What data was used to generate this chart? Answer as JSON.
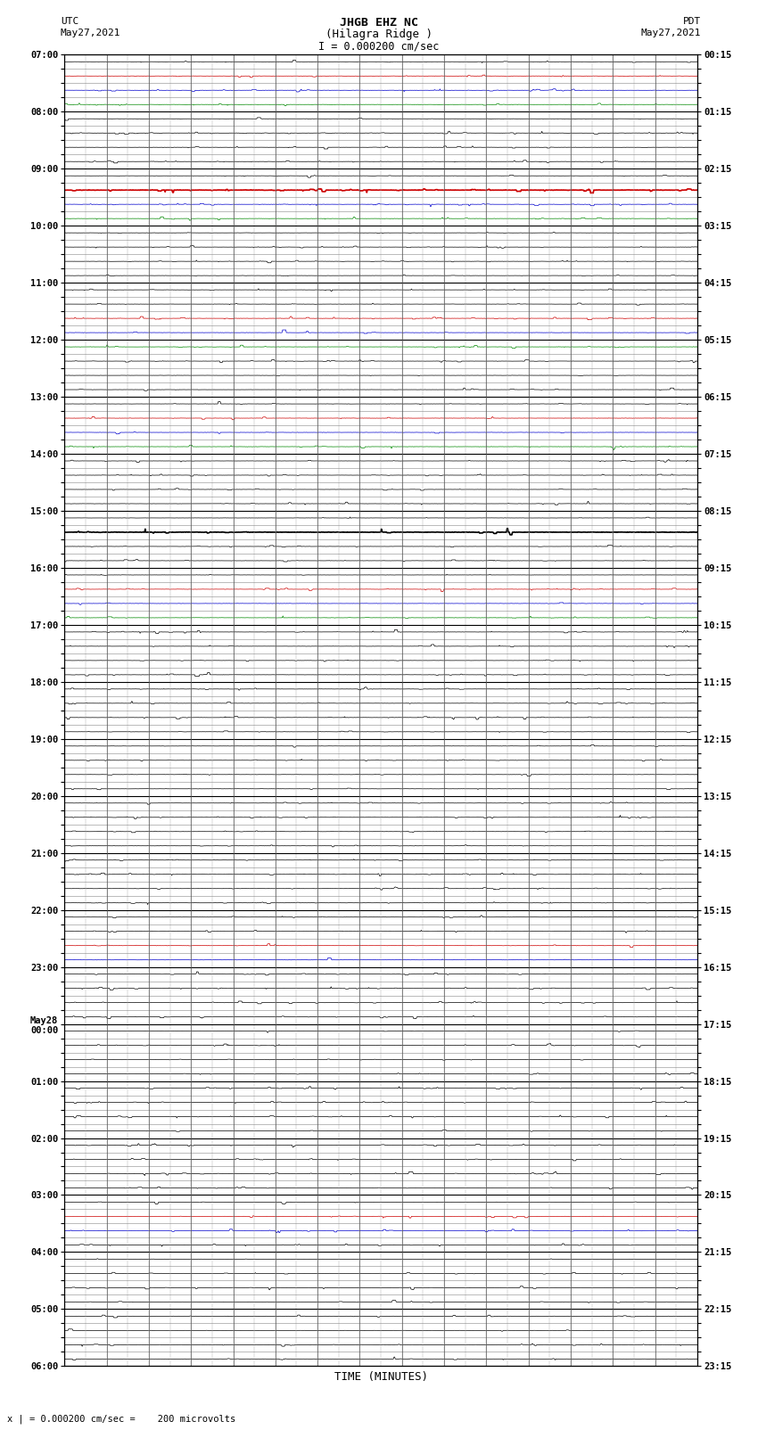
{
  "title_line1": "JHGB EHZ NC",
  "title_line2": "(Hilagra Ridge )",
  "scale_text": "I = 0.000200 cm/sec",
  "left_label": "UTC",
  "left_date": "May27,2021",
  "right_label": "PDT",
  "right_date": "May27,2021",
  "bottom_note": "x | = 0.000200 cm/sec =    200 microvolts",
  "xlabel": "TIME (MINUTES)",
  "num_rows": 92,
  "minutes_per_row": 15,
  "bg_color": "#ffffff",
  "left_hour_rows": [
    0,
    4,
    8,
    12,
    16,
    20,
    24,
    28,
    32,
    36,
    40,
    44,
    48,
    52,
    56,
    60,
    64,
    68,
    72,
    76,
    80,
    84,
    88
  ],
  "left_hour_labels": [
    "07:00",
    "08:00",
    "09:00",
    "10:00",
    "11:00",
    "12:00",
    "13:00",
    "14:00",
    "15:00",
    "16:00",
    "17:00",
    "18:00",
    "19:00",
    "20:00",
    "21:00",
    "22:00",
    "23:00",
    "May28\n00:00",
    "01:00",
    "02:00",
    "03:00",
    "04:00",
    "05:00"
  ],
  "left_extra_rows": [
    92
  ],
  "left_extra_labels": [
    "06:00"
  ],
  "right_hour_rows": [
    0,
    4,
    8,
    12,
    16,
    20,
    24,
    28,
    32,
    36,
    40,
    44,
    48,
    52,
    56,
    60,
    64,
    68,
    72,
    76,
    80,
    84,
    88
  ],
  "right_hour_labels": [
    "00:15",
    "01:15",
    "02:15",
    "03:15",
    "04:15",
    "05:15",
    "06:15",
    "07:15",
    "08:15",
    "09:15",
    "10:15",
    "11:15",
    "12:15",
    "13:15",
    "14:15",
    "15:15",
    "16:15",
    "17:15",
    "18:15",
    "19:15",
    "20:15",
    "21:15",
    "22:15"
  ],
  "right_extra_rows": [
    92
  ],
  "right_extra_labels": [
    "23:15"
  ],
  "x_ticks": [
    0,
    1,
    2,
    3,
    4,
    5,
    6,
    7,
    8,
    9,
    10,
    11,
    12,
    13,
    14,
    15
  ],
  "row_colors": [
    "k",
    "r",
    "b",
    "g",
    "k",
    "k",
    "k",
    "k",
    "k",
    "r",
    "b",
    "g",
    "k",
    "k",
    "k",
    "k",
    "k",
    "k",
    "r",
    "b",
    "g",
    "k",
    "k",
    "k",
    "k",
    "r",
    "b",
    "g",
    "k",
    "k",
    "k",
    "k",
    "k",
    "k",
    "k",
    "k",
    "k",
    "r",
    "b",
    "g",
    "k",
    "k",
    "k",
    "k",
    "k",
    "k",
    "k",
    "k",
    "k",
    "k",
    "k",
    "k",
    "k",
    "k",
    "k",
    "k",
    "k",
    "k",
    "k",
    "k",
    "k",
    "k",
    "r",
    "b",
    "k",
    "k",
    "k",
    "k",
    "k",
    "k",
    "k",
    "k",
    "k",
    "k",
    "k",
    "k",
    "k",
    "k",
    "k",
    "k",
    "k",
    "r",
    "b",
    "k",
    "k",
    "k",
    "k",
    "k",
    "k",
    "k",
    "k",
    "k",
    "k",
    "k",
    "k",
    "b"
  ],
  "bold_rows": [
    9,
    33
  ],
  "row_amplitude_base": 0.06,
  "row_amplitude_colored": 0.08,
  "row_amplitude_bold": 0.12
}
